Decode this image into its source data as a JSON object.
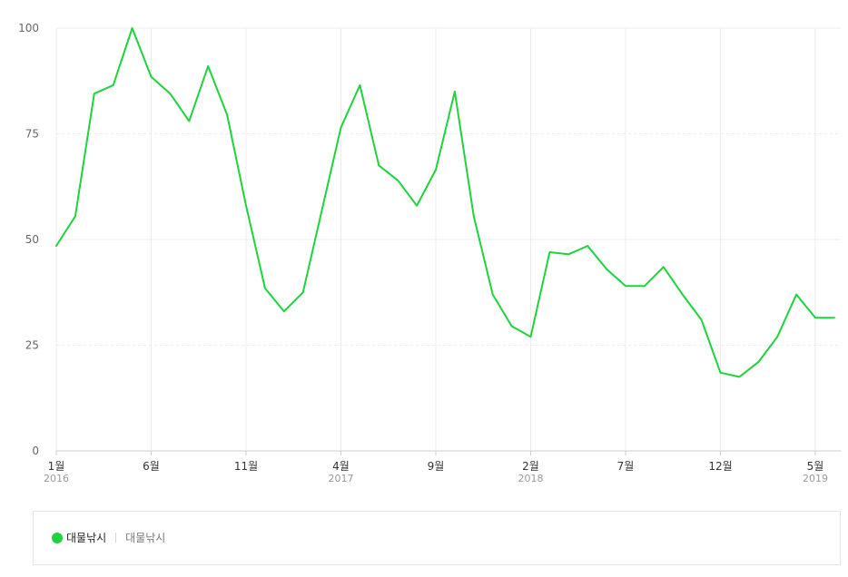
{
  "chart_data": {
    "type": "line",
    "title": "",
    "xlabel": "",
    "ylabel": "",
    "ylim": [
      0,
      100
    ],
    "yticks": [
      "0",
      "25",
      "50",
      "75",
      "100"
    ],
    "grid": true,
    "x": [
      "2016-01",
      "2016-02",
      "2016-03",
      "2016-04",
      "2016-05",
      "2016-06",
      "2016-07",
      "2016-08",
      "2016-09",
      "2016-10",
      "2016-11",
      "2016-12",
      "2017-01",
      "2017-02",
      "2017-03",
      "2017-04",
      "2017-05",
      "2017-06",
      "2017-07",
      "2017-08",
      "2017-09",
      "2017-10",
      "2017-11",
      "2017-12",
      "2018-01",
      "2018-02",
      "2018-03",
      "2018-04",
      "2018-05",
      "2018-06",
      "2018-07",
      "2018-08",
      "2018-09",
      "2018-10",
      "2018-11",
      "2018-12",
      "2019-01",
      "2019-02",
      "2019-03",
      "2019-04",
      "2019-05",
      "2019-06"
    ],
    "xticks": [
      {
        "index": 0,
        "label": "1월",
        "year": "2016"
      },
      {
        "index": 5,
        "label": "6월",
        "year": ""
      },
      {
        "index": 10,
        "label": "11월",
        "year": ""
      },
      {
        "index": 15,
        "label": "4월",
        "year": "2017"
      },
      {
        "index": 20,
        "label": "9월",
        "year": ""
      },
      {
        "index": 25,
        "label": "2월",
        "year": "2018"
      },
      {
        "index": 30,
        "label": "7월",
        "year": ""
      },
      {
        "index": 35,
        "label": "12월",
        "year": ""
      },
      {
        "index": 40,
        "label": "5월",
        "year": "2019"
      }
    ],
    "series": [
      {
        "name": "대물낚시",
        "color": "#1ed33c",
        "values": [
          48.5,
          55.5,
          84.5,
          86.5,
          100,
          88.5,
          84.5,
          78,
          91,
          79.5,
          58,
          38.5,
          33,
          37.5,
          57,
          76.5,
          86.5,
          67.5,
          64,
          58,
          66.5,
          85,
          55.5,
          37,
          29.5,
          27,
          47,
          46.5,
          48.5,
          43,
          39,
          39,
          43.5,
          37,
          31,
          18.5,
          17.5,
          21,
          27,
          37,
          31.5,
          31.5
        ]
      }
    ]
  },
  "legend": {
    "dot_color": "#1ed33c",
    "series_name": "대물낚시",
    "keyword": "대물낚시"
  }
}
